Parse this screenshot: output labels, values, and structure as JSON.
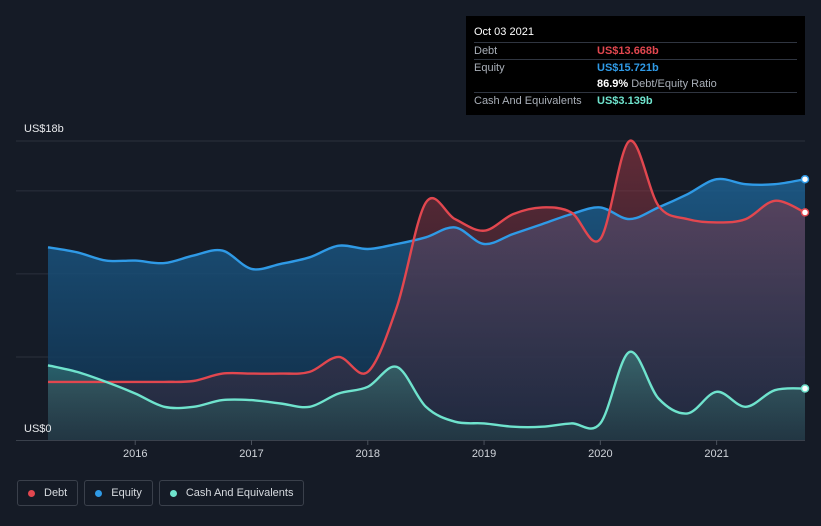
{
  "tooltip": {
    "date": "Oct 03 2021",
    "rows": [
      {
        "label": "Debt",
        "value": "US$13.668b",
        "color": "#e2474f"
      },
      {
        "label": "Equity",
        "value": "US$15.721b",
        "color": "#2f9ae6"
      },
      {
        "label": "Cash And Equivalents",
        "value": "US$3.139b",
        "color": "#6fe3cd"
      }
    ],
    "ratio_value": "86.9%",
    "ratio_label": "Debt/Equity Ratio"
  },
  "legend": [
    {
      "label": "Debt",
      "color": "#e2474f",
      "icon": "debt-dot-icon"
    },
    {
      "label": "Equity",
      "color": "#2f9ae6",
      "icon": "equity-dot-icon"
    },
    {
      "label": "Cash And Equivalents",
      "color": "#6fe3cd",
      "icon": "cash-dot-icon"
    }
  ],
  "chart_data": {
    "type": "area",
    "title": "",
    "xlabel": "",
    "ylabel": "",
    "y_top_label": "US$18b",
    "y_bottom_label": "US$0",
    "ylim": [
      0,
      18
    ],
    "xlim": [
      2015.25,
      2021.76
    ],
    "x_ticks": [
      2016,
      2017,
      2018,
      2019,
      2020,
      2021
    ],
    "x_tick_labels": [
      "2016",
      "2017",
      "2018",
      "2019",
      "2020",
      "2021"
    ],
    "grid": true,
    "series": [
      {
        "name": "Debt",
        "color": "#e2474f",
        "points": [
          [
            2015.25,
            3.5
          ],
          [
            2015.5,
            3.5
          ],
          [
            2015.75,
            3.5
          ],
          [
            2016.0,
            3.5
          ],
          [
            2016.25,
            3.5
          ],
          [
            2016.5,
            3.55
          ],
          [
            2016.75,
            4.0
          ],
          [
            2017.0,
            4.0
          ],
          [
            2017.25,
            4.0
          ],
          [
            2017.5,
            4.1
          ],
          [
            2017.75,
            5.0
          ],
          [
            2018.0,
            4.1
          ],
          [
            2018.25,
            8.0
          ],
          [
            2018.5,
            14.3
          ],
          [
            2018.75,
            13.3
          ],
          [
            2019.0,
            12.6
          ],
          [
            2019.25,
            13.6
          ],
          [
            2019.5,
            14.0
          ],
          [
            2019.75,
            13.7
          ],
          [
            2020.0,
            12.1
          ],
          [
            2020.25,
            18.0
          ],
          [
            2020.5,
            14.1
          ],
          [
            2020.75,
            13.3
          ],
          [
            2021.0,
            13.1
          ],
          [
            2021.25,
            13.3
          ],
          [
            2021.5,
            14.4
          ],
          [
            2021.76,
            13.7
          ]
        ]
      },
      {
        "name": "Equity",
        "color": "#2f9ae6",
        "points": [
          [
            2015.25,
            11.6
          ],
          [
            2015.5,
            11.3
          ],
          [
            2015.75,
            10.8
          ],
          [
            2016.0,
            10.8
          ],
          [
            2016.25,
            10.65
          ],
          [
            2016.5,
            11.1
          ],
          [
            2016.75,
            11.4
          ],
          [
            2017.0,
            10.3
          ],
          [
            2017.25,
            10.6
          ],
          [
            2017.5,
            11.0
          ],
          [
            2017.75,
            11.7
          ],
          [
            2018.0,
            11.5
          ],
          [
            2018.25,
            11.8
          ],
          [
            2018.5,
            12.2
          ],
          [
            2018.75,
            12.8
          ],
          [
            2019.0,
            11.8
          ],
          [
            2019.25,
            12.4
          ],
          [
            2019.5,
            13.0
          ],
          [
            2019.75,
            13.6
          ],
          [
            2020.0,
            14.0
          ],
          [
            2020.25,
            13.3
          ],
          [
            2020.5,
            14.0
          ],
          [
            2020.75,
            14.8
          ],
          [
            2021.0,
            15.7
          ],
          [
            2021.25,
            15.4
          ],
          [
            2021.5,
            15.4
          ],
          [
            2021.76,
            15.7
          ]
        ]
      },
      {
        "name": "Cash And Equivalents",
        "color": "#6fe3cd",
        "points": [
          [
            2015.25,
            4.5
          ],
          [
            2015.5,
            4.1
          ],
          [
            2015.75,
            3.5
          ],
          [
            2016.0,
            2.8
          ],
          [
            2016.25,
            2.0
          ],
          [
            2016.5,
            2.0
          ],
          [
            2016.75,
            2.4
          ],
          [
            2017.0,
            2.4
          ],
          [
            2017.25,
            2.2
          ],
          [
            2017.5,
            2.0
          ],
          [
            2017.75,
            2.8
          ],
          [
            2018.0,
            3.2
          ],
          [
            2018.25,
            4.4
          ],
          [
            2018.5,
            2.0
          ],
          [
            2018.75,
            1.1
          ],
          [
            2019.0,
            1.0
          ],
          [
            2019.25,
            0.8
          ],
          [
            2019.5,
            0.8
          ],
          [
            2019.75,
            1.0
          ],
          [
            2020.0,
            1.0
          ],
          [
            2020.25,
            5.3
          ],
          [
            2020.5,
            2.5
          ],
          [
            2020.75,
            1.6
          ],
          [
            2021.0,
            2.9
          ],
          [
            2021.25,
            2.0
          ],
          [
            2021.5,
            3.0
          ],
          [
            2021.76,
            3.1
          ]
        ]
      }
    ]
  }
}
